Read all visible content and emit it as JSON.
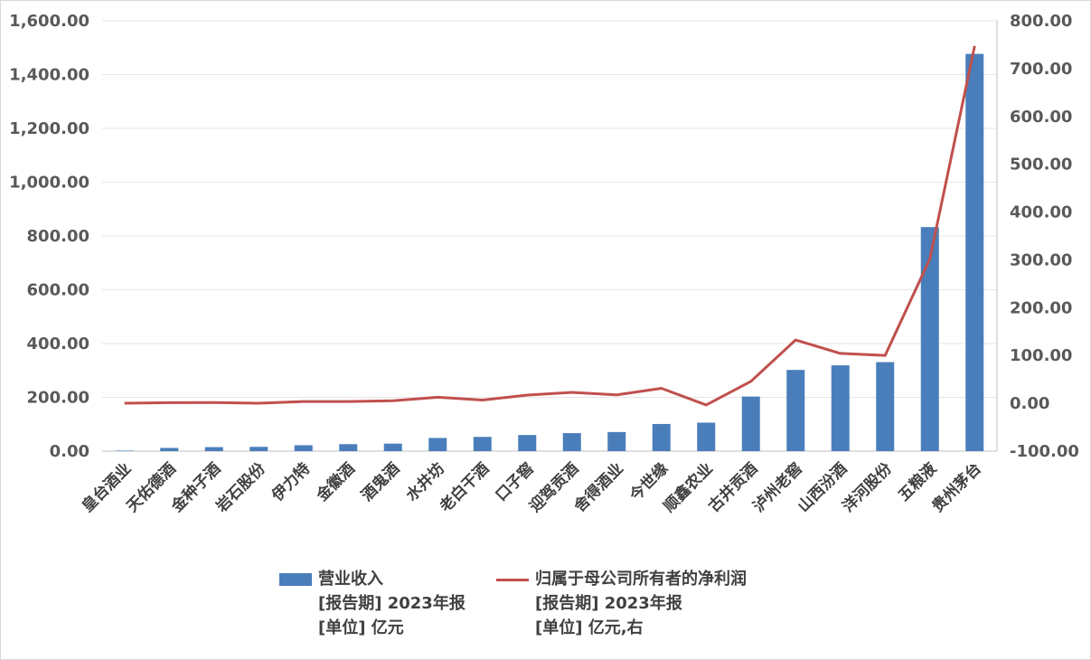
{
  "chart_data": {
    "type": "bar+line",
    "categories": [
      "皇台酒业",
      "天佑德酒",
      "金种子酒",
      "岩石股份",
      "伊力特",
      "金徽酒",
      "酒鬼酒",
      "水井坊",
      "老白干酒",
      "口子窖",
      "迎驾贡酒",
      "舍得酒业",
      "今世缘",
      "顺鑫农业",
      "古井贡酒",
      "泸州老窖",
      "山西汾酒",
      "洋河股份",
      "五粮液",
      "贵州茅台"
    ],
    "series": [
      {
        "name": "营业收入",
        "report_period": "[报告期]  2023年报",
        "unit": "[单位]  亿元",
        "axis": "left",
        "kind": "bar",
        "values": [
          2,
          12,
          15,
          16,
          22,
          26,
          28,
          49,
          53,
          60,
          67,
          71,
          101,
          106,
          203,
          302,
          319,
          331,
          833,
          1477
        ]
      },
      {
        "name": "归属于母公司所有者的净利润",
        "report_period": "[报告期]  2023年报",
        "unit": "[单位]  亿元,右",
        "axis": "right",
        "kind": "line",
        "values": [
          0.1,
          1.3,
          1.6,
          0.1,
          3.7,
          3.8,
          5.5,
          12.7,
          6.9,
          17.2,
          22.9,
          17.7,
          31.4,
          -3.5,
          45.9,
          132.5,
          104.4,
          100.2,
          302.1,
          747.3
        ]
      }
    ],
    "y_left": {
      "min": 0,
      "max": 1600,
      "step": 200,
      "tick_labels": [
        "0.00",
        "200.00",
        "400.00",
        "600.00",
        "800.00",
        "1,000.00",
        "1,200.00",
        "1,400.00",
        "1,600.00"
      ]
    },
    "y_right": {
      "min": -100,
      "max": 800,
      "step": 100,
      "tick_labels": [
        "-100.00",
        "0.00",
        "100.00",
        "200.00",
        "300.00",
        "400.00",
        "500.00",
        "600.00",
        "700.00",
        "800.00"
      ]
    },
    "grid": true,
    "legend_position": "bottom",
    "colors": {
      "bar": "#4a7ebb",
      "line": "#c0504d",
      "grid": "#e6e6e6",
      "axis": "#bfbfbf"
    }
  }
}
